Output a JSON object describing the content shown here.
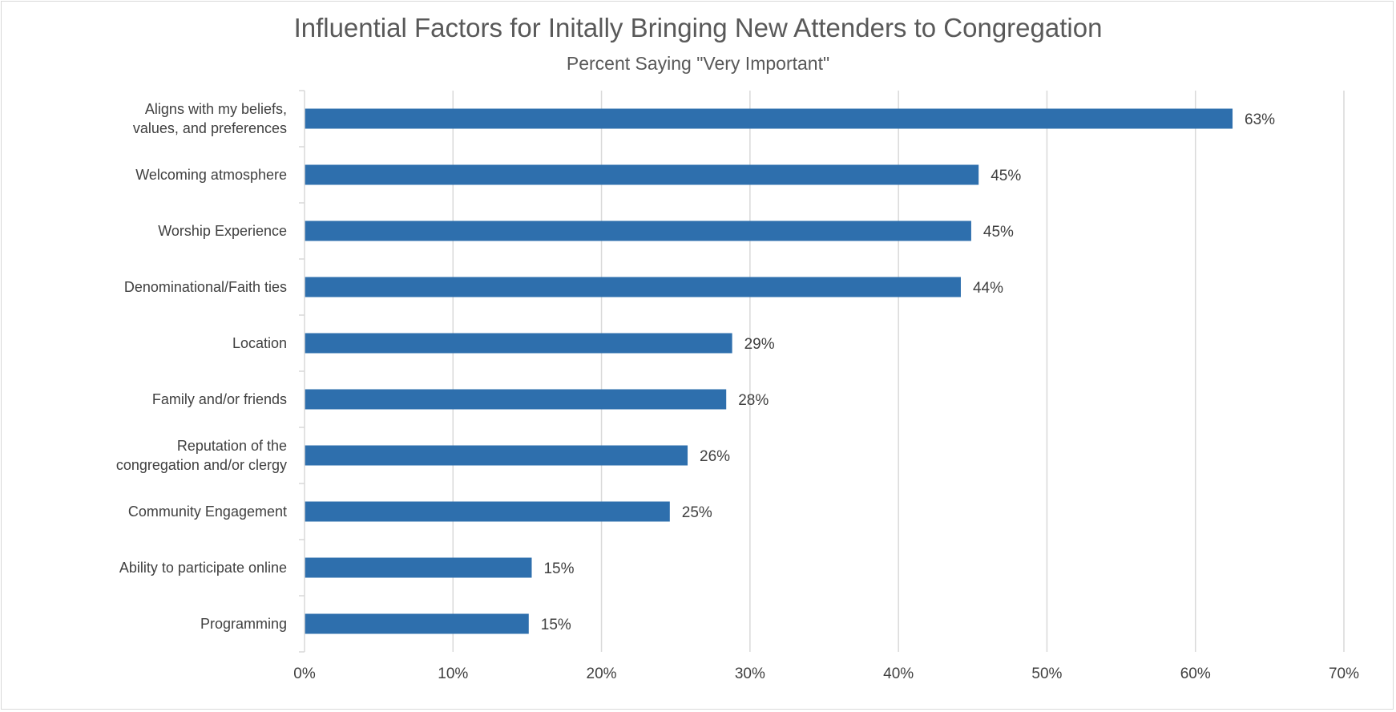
{
  "chart_data": {
    "type": "bar",
    "orientation": "horizontal",
    "title": "Influential Factors for Initally Bringing New Attenders to Congregation",
    "subtitle": "Percent Saying \"Very Important\"",
    "categories": [
      [
        "Aligns with my beliefs,",
        "values, and preferences"
      ],
      [
        "Welcoming atmosphere"
      ],
      [
        "Worship Experience"
      ],
      [
        "Denominational/Faith ties"
      ],
      [
        "Location"
      ],
      [
        "Family and/or friends"
      ],
      [
        "Reputation of the",
        "congregation and/or clergy"
      ],
      [
        "Community Engagement"
      ],
      [
        "Ability to participate online"
      ],
      [
        "Programming"
      ]
    ],
    "values": [
      62.5,
      45.4,
      44.9,
      44.2,
      28.8,
      28.4,
      25.8,
      24.6,
      15.3,
      15.1
    ],
    "data_labels": [
      "63%",
      "45%",
      "45%",
      "44%",
      "29%",
      "28%",
      "26%",
      "25%",
      "15%",
      "15%"
    ],
    "xlim": [
      0,
      70
    ],
    "x_ticks": [
      "0%",
      "10%",
      "20%",
      "30%",
      "40%",
      "50%",
      "60%",
      "70%"
    ],
    "grid": true,
    "legend": "none",
    "bar_color": "#2e6fad",
    "gridline_color": "#d9d9d9",
    "text_color": "#404040",
    "title_color": "#595959"
  }
}
